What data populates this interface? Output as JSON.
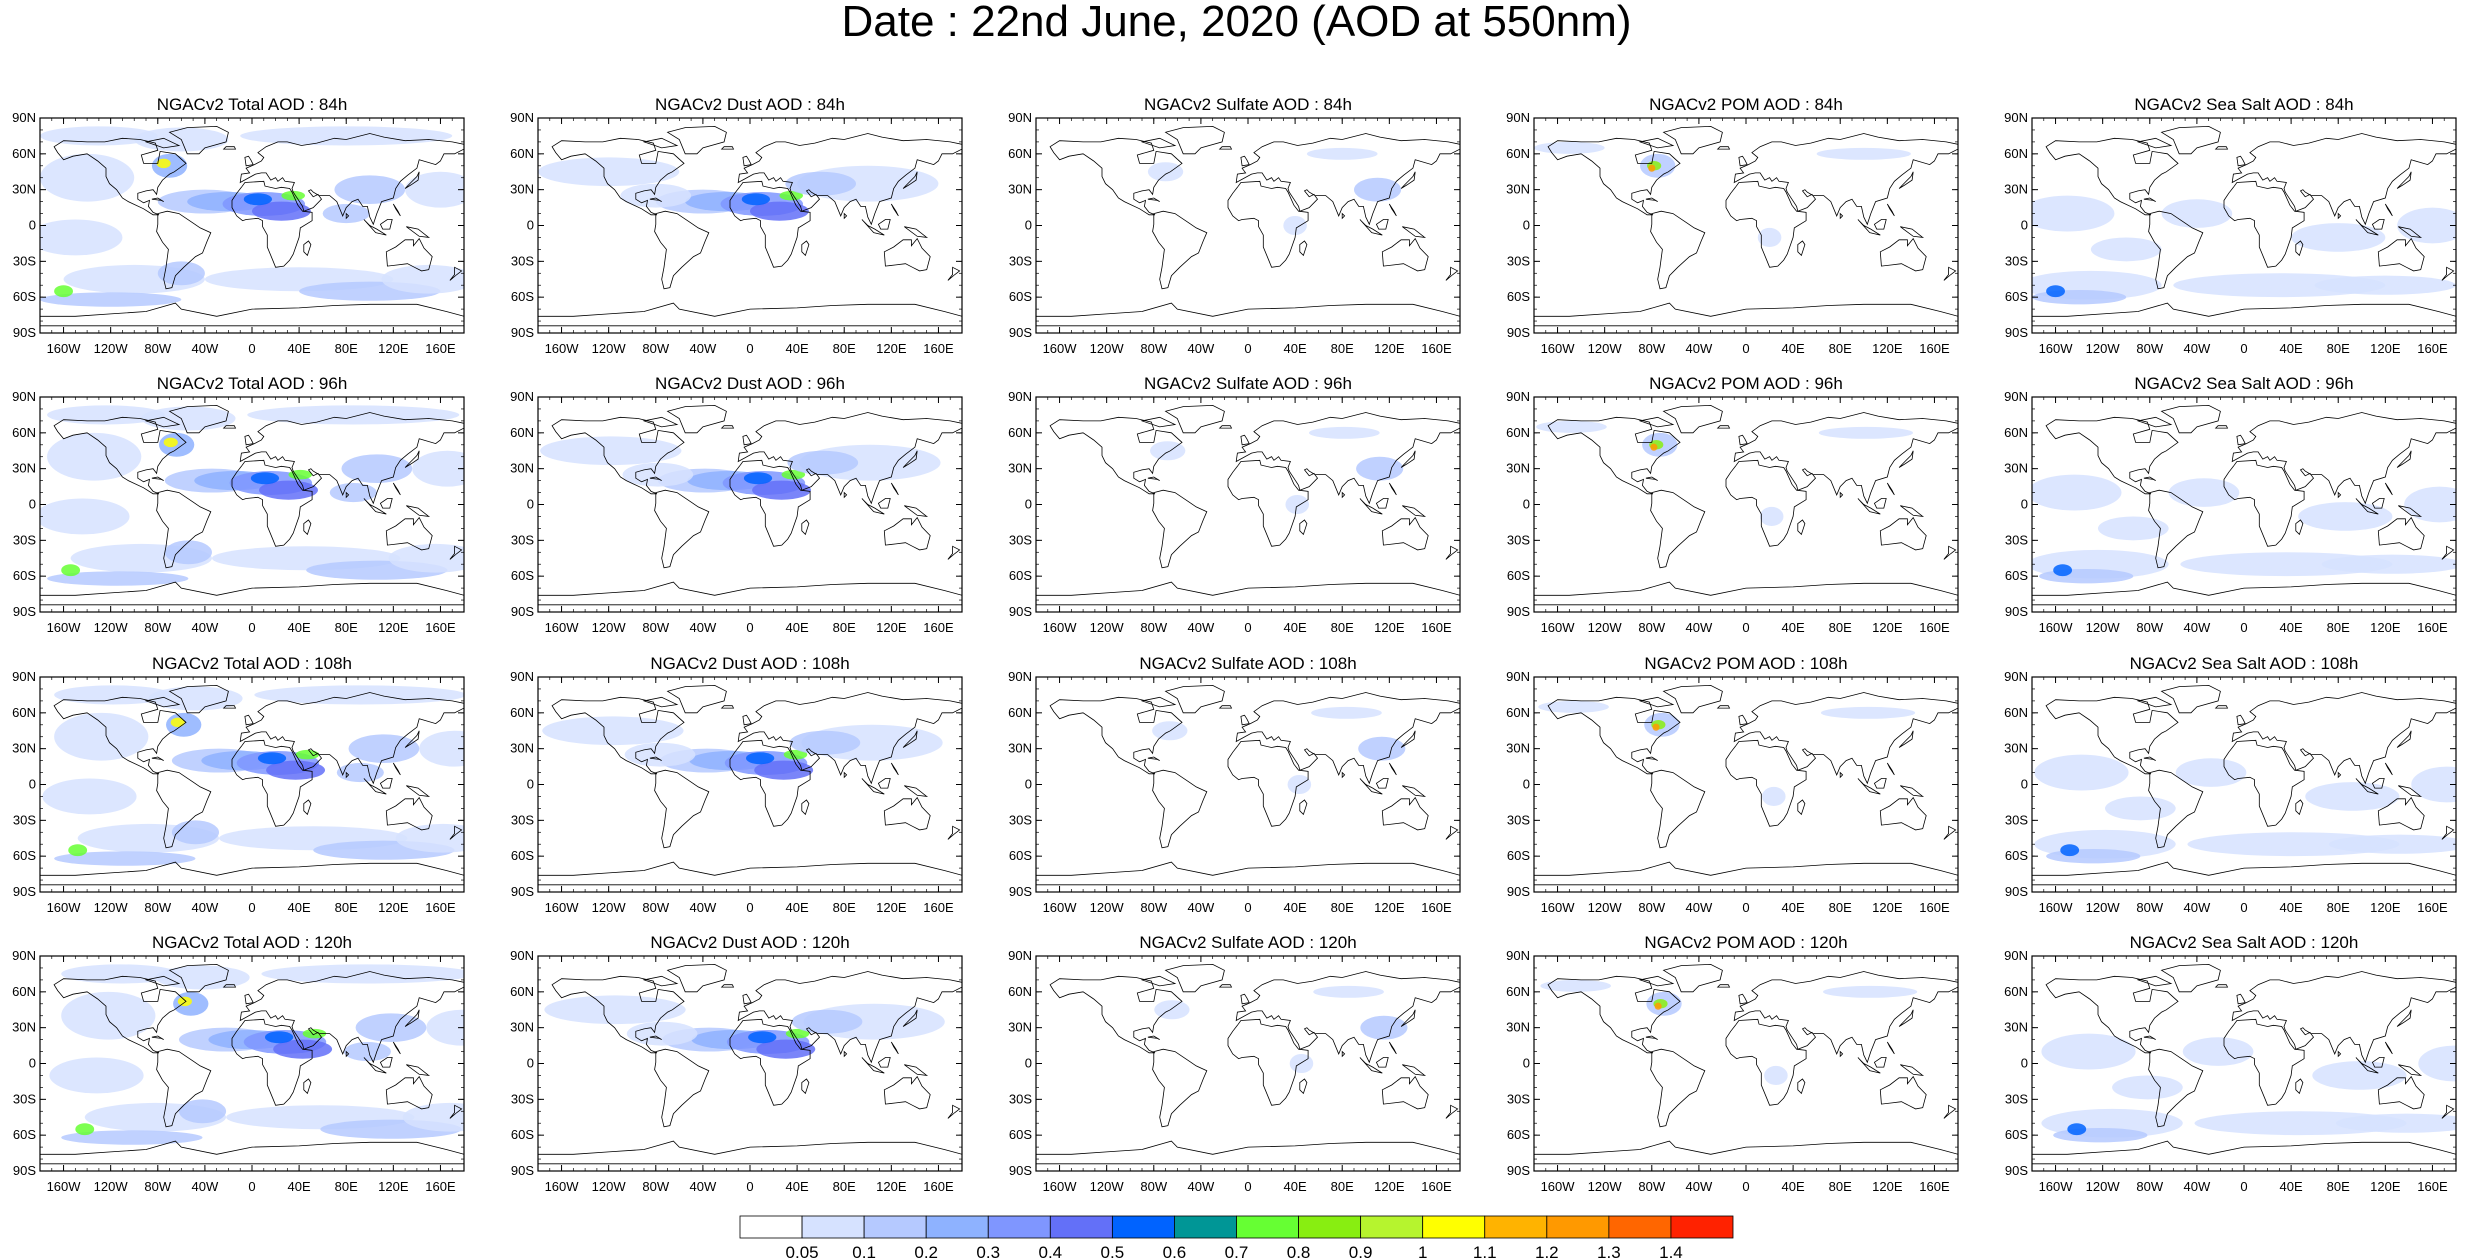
{
  "figure": {
    "title": "Date : 22nd June, 2020 (AOD at 550nm)"
  },
  "columns": [
    "Total",
    "Dust",
    "Sulfate",
    "POM",
    "Sea Salt"
  ],
  "rows": [
    "84h",
    "96h",
    "108h",
    "120h"
  ],
  "panels": [
    [
      "NGACv2 Total AOD : 84h",
      "NGACv2 Dust AOD : 84h",
      "NGACv2 Sulfate AOD : 84h",
      "NGACv2 POM AOD : 84h",
      "NGACv2 Sea Salt AOD : 84h"
    ],
    [
      "NGACv2 Total AOD : 96h",
      "NGACv2 Dust AOD : 96h",
      "NGACv2 Sulfate AOD : 96h",
      "NGACv2 POM AOD : 96h",
      "NGACv2 Sea Salt AOD : 96h"
    ],
    [
      "NGACv2 Total AOD : 108h",
      "NGACv2 Dust AOD : 108h",
      "NGACv2 Sulfate AOD : 108h",
      "NGACv2 POM AOD : 108h",
      "NGACv2 Sea Salt AOD : 108h"
    ],
    [
      "NGACv2 Total AOD : 120h",
      "NGACv2 Dust AOD : 120h",
      "NGACv2 Sulfate AOD : 120h",
      "NGACv2 POM AOD : 120h",
      "NGACv2 Sea Salt  AOD : 120h"
    ]
  ],
  "axes": {
    "lat_ticks": [
      "90N",
      "60N",
      "30N",
      "0",
      "30S",
      "60S",
      "90S"
    ],
    "lon_ticks": [
      "160W",
      "120W",
      "80W",
      "40W",
      "0",
      "40E",
      "80E",
      "120E",
      "160E"
    ],
    "lon_range": [
      -180,
      180
    ],
    "lat_range": [
      -90,
      90
    ]
  },
  "colorbar": {
    "levels": [
      "0.05",
      "0.1",
      "0.2",
      "0.3",
      "0.4",
      "0.5",
      "0.6",
      "0.7",
      "0.8",
      "0.9",
      "1",
      "1.1",
      "1.2",
      "1.3",
      "1.4"
    ],
    "colors": [
      "#ffffff",
      "#d6e2ff",
      "#b5c9ff",
      "#8eb2ff",
      "#7f96ff",
      "#6370f8",
      "#0063ff",
      "#009696",
      "#66ff33",
      "#88ee11",
      "#b6f42e",
      "#ffff00",
      "#ffb300",
      "#ff9900",
      "#ff6600",
      "#ff2200"
    ]
  },
  "style": {
    "land_outline": "#000000",
    "aod_light": "#d6e2ff",
    "aod_mid": "#b5c9ff",
    "aod_blue": "#8eb2ff",
    "aod_dark": "#6370f8"
  }
}
